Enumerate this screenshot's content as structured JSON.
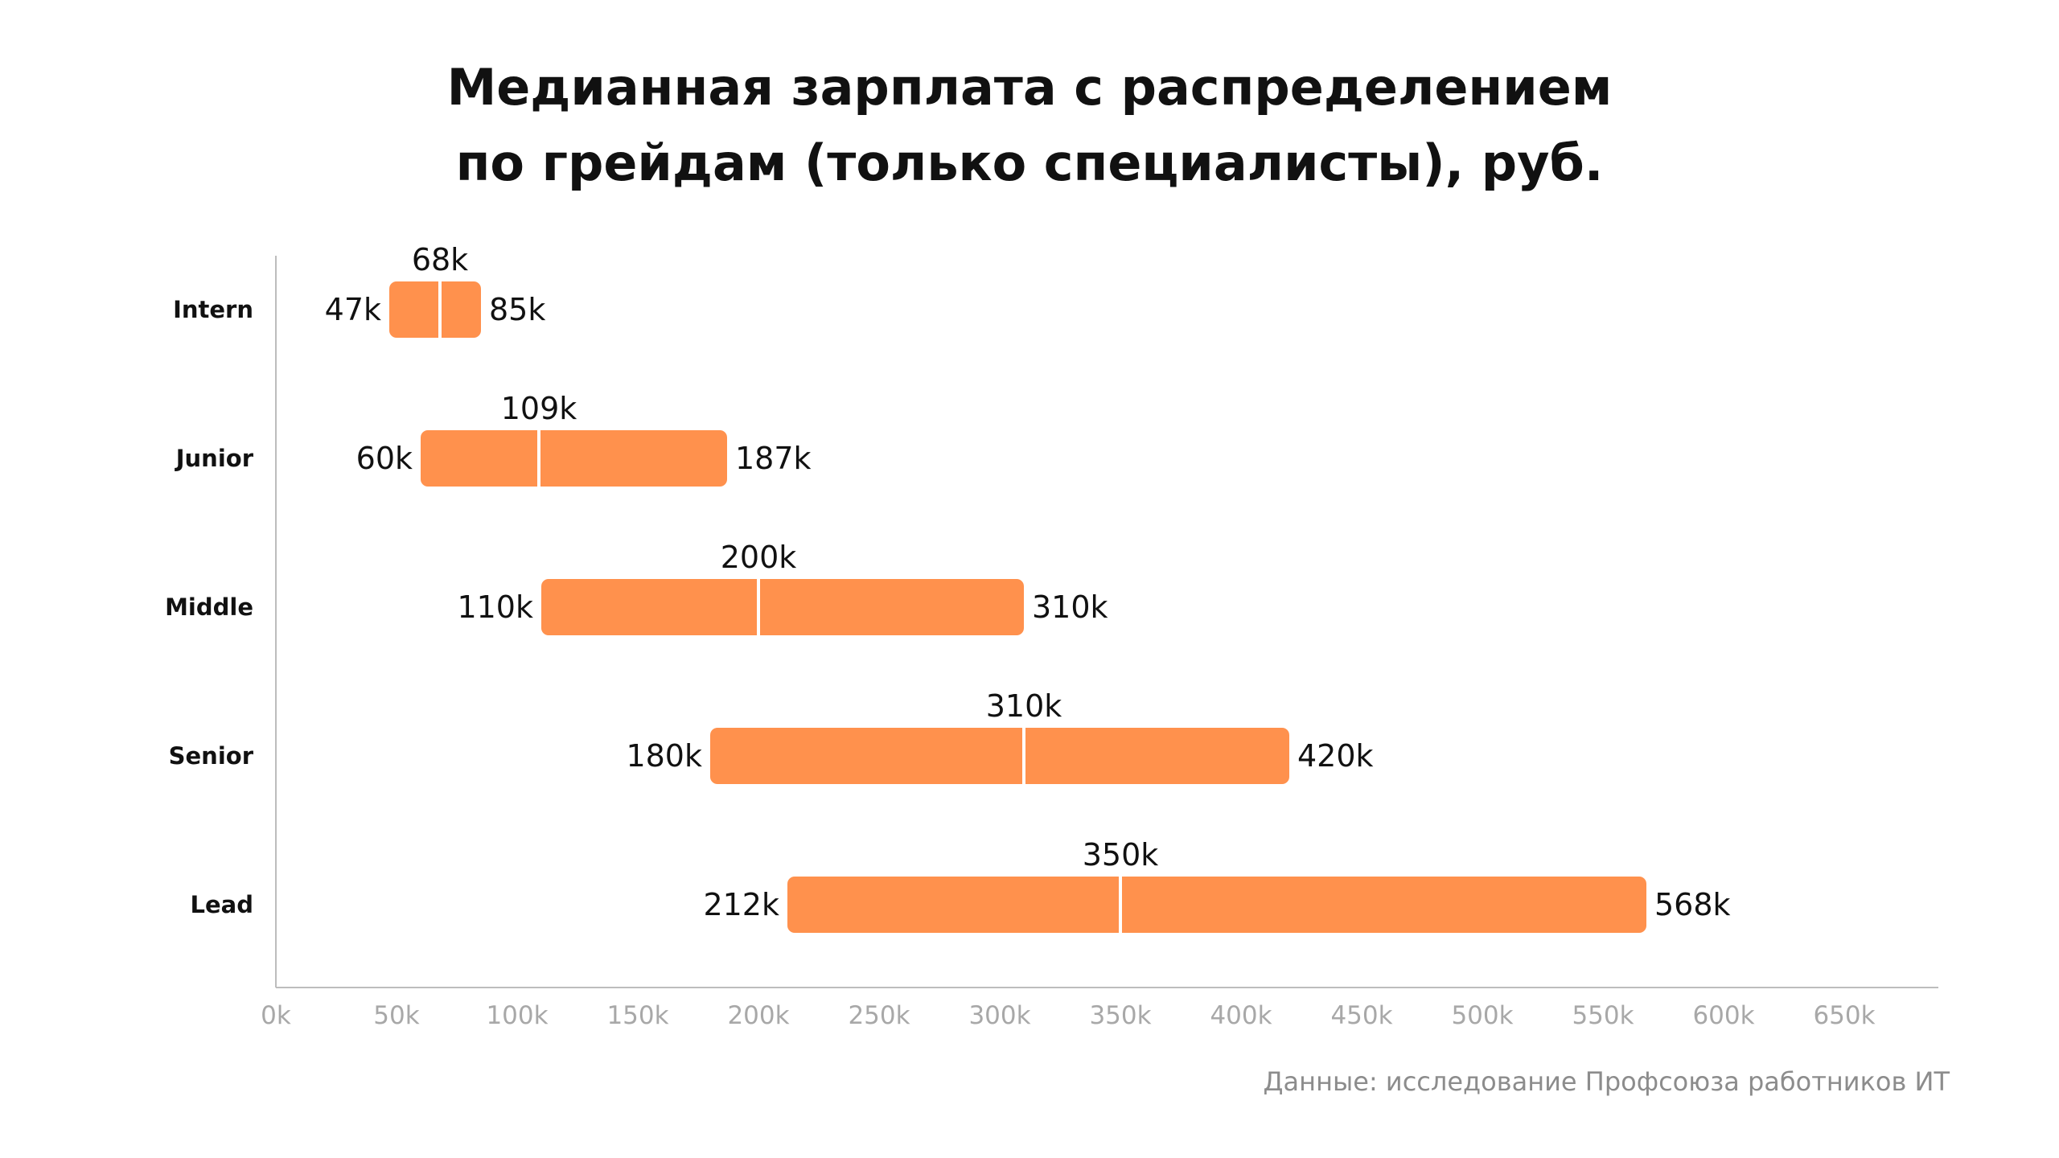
{
  "title_lines": [
    "Медианная зарплата с распределением",
    "по грейдам (только специалисты), руб."
  ],
  "source": "Данные: исследование Профсоюза работников ИТ",
  "colors": {
    "bar": "#FF914D",
    "median_line": "#ffffff",
    "axis": "#bdbdbd",
    "tick_label": "#a8a8a8",
    "value_label": "#111111",
    "category_label": "#111111"
  },
  "chart_data": {
    "type": "bar",
    "orientation": "horizontal",
    "style": "range",
    "categories": [
      "Intern",
      "Junior",
      "Middle",
      "Senior",
      "Lead"
    ],
    "series": [
      {
        "min": [
          47,
          60,
          110,
          180,
          212
        ],
        "median": [
          68,
          109,
          200,
          310,
          350
        ],
        "max": [
          85,
          187,
          310,
          420,
          568
        ],
        "min_labels": [
          "47k",
          "60k",
          "110k",
          "180k",
          "212k"
        ],
        "median_labels": [
          "68k",
          "109k",
          "200k",
          "310k",
          "350k"
        ],
        "max_labels": [
          "85k",
          "187k",
          "310k",
          "420k",
          "568k"
        ]
      }
    ],
    "x_ticks": [
      0,
      50,
      100,
      150,
      200,
      250,
      300,
      350,
      400,
      450,
      500,
      550,
      600,
      650
    ],
    "x_tick_labels": [
      "0k",
      "50k",
      "100k",
      "150k",
      "200k",
      "250k",
      "300k",
      "350k",
      "400k",
      "450k",
      "500k",
      "550k",
      "600k",
      "650k"
    ],
    "xlim": [
      0,
      690
    ],
    "xlabel": "",
    "ylabel": "",
    "grid": false,
    "legend": "none"
  }
}
